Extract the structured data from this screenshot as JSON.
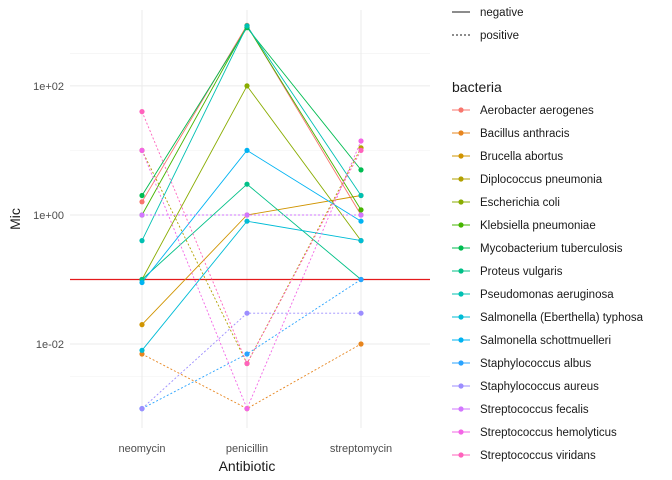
{
  "chart_data": {
    "type": "line",
    "xlabel": "Antibiotic",
    "ylabel": "Mic",
    "y_scale": "log10",
    "ylim": [
      0.0005,
      1500
    ],
    "y_ticks": [
      0.01,
      1,
      100
    ],
    "y_tick_labels": [
      "1e-02",
      "1e+00",
      "1e+02"
    ],
    "categories": [
      "neomycin",
      "penicillin",
      "streptomycin"
    ],
    "reference_line": {
      "y": 0.1,
      "color": "#e41a1c"
    },
    "grid": true,
    "legend_position": "right",
    "linetype_legend": {
      "entries": [
        {
          "label": "negative",
          "style": "solid"
        },
        {
          "label": "positive",
          "style": "dotted"
        }
      ]
    },
    "color_legend": {
      "title": "bacteria"
    },
    "series": [
      {
        "name": "Aerobacter aerogenes",
        "gram": "negative",
        "color": "#F8766D",
        "values": [
          1.6,
          870,
          1
        ]
      },
      {
        "name": "Bacillus anthracis",
        "gram": "positive",
        "color": "#E7851E",
        "values": [
          0.007,
          0.001,
          0.01
        ]
      },
      {
        "name": "Brucella abortus",
        "gram": "negative",
        "color": "#D09400",
        "values": [
          0.02,
          1,
          2
        ]
      },
      {
        "name": "Diplococcus pneumonia",
        "gram": "positive",
        "color": "#B2A100",
        "values": [
          10,
          0.005,
          11
        ]
      },
      {
        "name": "Escherichia coli",
        "gram": "negative",
        "color": "#89AC00",
        "values": [
          0.1,
          100,
          0.4
        ]
      },
      {
        "name": "Klebsiella pneumoniae",
        "gram": "negative",
        "color": "#45B500",
        "values": [
          1,
          850,
          1.2
        ]
      },
      {
        "name": "Mycobacterium tuberculosis",
        "gram": "negative",
        "color": "#00BC51",
        "values": [
          2,
          800,
          5
        ]
      },
      {
        "name": "Proteus vulgaris",
        "gram": "negative",
        "color": "#00C087",
        "values": [
          0.1,
          3,
          0.1
        ]
      },
      {
        "name": "Pseudomonas aeruginosa",
        "gram": "negative",
        "color": "#00C0B2",
        "values": [
          0.4,
          850,
          2
        ]
      },
      {
        "name": "Salmonella (Eberthella) typhosa",
        "gram": "negative",
        "color": "#00BCD6",
        "values": [
          0.008,
          0.8,
          0.4
        ]
      },
      {
        "name": "Salmonella schottmuelleri",
        "gram": "negative",
        "color": "#00B3F2",
        "values": [
          0.09,
          10,
          0.8
        ]
      },
      {
        "name": "Staphylococcus albus",
        "gram": "positive",
        "color": "#29A3FF",
        "values": [
          0.001,
          0.007,
          0.1
        ]
      },
      {
        "name": "Staphylococcus aureus",
        "gram": "positive",
        "color": "#9C8DFF",
        "values": [
          0.001,
          0.03,
          0.03
        ]
      },
      {
        "name": "Streptococcus fecalis",
        "gram": "positive",
        "color": "#D277FF",
        "values": [
          1,
          1,
          1
        ]
      },
      {
        "name": "Streptococcus hemolyticus",
        "gram": "positive",
        "color": "#F365E6",
        "values": [
          10,
          0.001,
          14
        ]
      },
      {
        "name": "Streptococcus viridans",
        "gram": "positive",
        "color": "#FF62BC",
        "values": [
          40,
          0.005,
          10
        ]
      }
    ]
  }
}
